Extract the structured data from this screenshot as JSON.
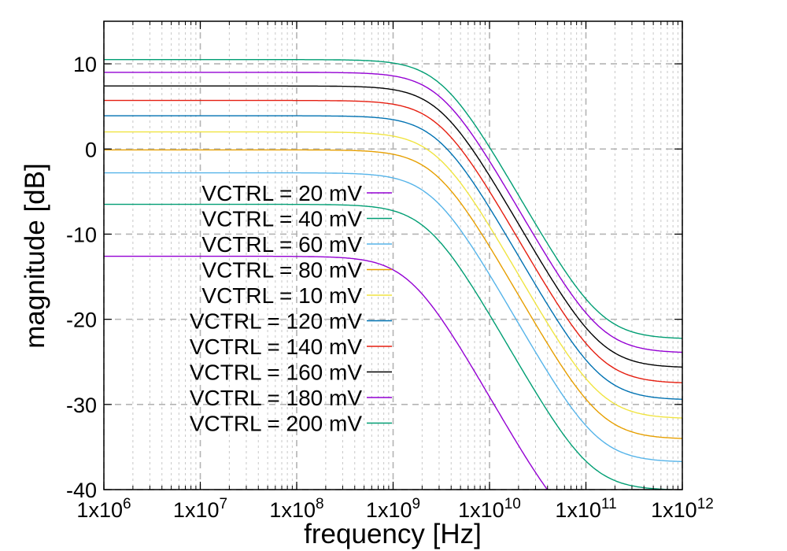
{
  "chart_data": {
    "type": "line",
    "xlabel": "frequency [Hz]",
    "ylabel": "magnitude [dB]",
    "xscale": "log",
    "xlim": [
      1000000,
      1000000000000
    ],
    "ylim": [
      -40,
      15
    ],
    "grid": true,
    "legend_position": "middle-left",
    "x_ticks": [
      {
        "value": 1000000,
        "base": "1x10",
        "exp": "6"
      },
      {
        "value": 10000000,
        "base": "1x10",
        "exp": "7"
      },
      {
        "value": 100000000,
        "base": "1x10",
        "exp": "8"
      },
      {
        "value": 1000000000,
        "base": "1x10",
        "exp": "9"
      },
      {
        "value": 10000000000,
        "base": "1x10",
        "exp": "10"
      },
      {
        "value": 100000000000,
        "base": "1x10",
        "exp": "11"
      },
      {
        "value": 1000000000000,
        "base": "1x10",
        "exp": "12"
      }
    ],
    "y_ticks": [
      {
        "value": 10,
        "label": "10"
      },
      {
        "value": 0,
        "label": "0"
      },
      {
        "value": -10,
        "label": "-10"
      },
      {
        "value": -20,
        "label": "-20"
      },
      {
        "value": -30,
        "label": "-30"
      },
      {
        "value": -40,
        "label": "-40"
      }
    ],
    "series": [
      {
        "name": "VCTRL = 20  mV",
        "color": "#9400d3",
        "dc_gain_db": -12.6,
        "hf_floor_db": -46.0,
        "pole_hz": 1500000000,
        "zero_hz": 75000000000
      },
      {
        "name": "VCTRL = 40  mV",
        "color": "#009e73",
        "dc_gain_db": -6.5,
        "hf_floor_db": -40.5,
        "pole_hz": 2300000000,
        "zero_hz": 110000000000
      },
      {
        "name": "VCTRL = 60  mV",
        "color": "#56b4e9",
        "dc_gain_db": -2.8,
        "hf_floor_db": -36.6,
        "pole_hz": 2600000000,
        "zero_hz": 130000000000
      },
      {
        "name": "VCTRL = 80  mV",
        "color": "#e69f00",
        "dc_gain_db": -0.1,
        "hf_floor_db": -34.0,
        "pole_hz": 2800000000,
        "zero_hz": 140000000000
      },
      {
        "name": "VCTRL = 10  mV",
        "color": "#f0e442",
        "dc_gain_db": 2.0,
        "hf_floor_db": -31.7,
        "pole_hz": 2900000000,
        "zero_hz": 140000000000
      },
      {
        "name": "VCTRL = 120 mV",
        "color": "#0072b2",
        "dc_gain_db": 3.9,
        "hf_floor_db": -29.7,
        "pole_hz": 3000000000,
        "zero_hz": 140000000000
      },
      {
        "name": "VCTRL = 140 mV",
        "color": "#e51e10",
        "dc_gain_db": 5.7,
        "hf_floor_db": -27.6,
        "pole_hz": 3050000000,
        "zero_hz": 140000000000
      },
      {
        "name": "VCTRL = 160 mV",
        "color": "#000000",
        "dc_gain_db": 7.4,
        "hf_floor_db": -25.4,
        "pole_hz": 3100000000,
        "zero_hz": 140000000000
      },
      {
        "name": "VCTRL = 180 mV",
        "color": "#9400d3",
        "dc_gain_db": 9.0,
        "hf_floor_db": -22.6,
        "pole_hz": 3150000000,
        "zero_hz": 140000000000
      },
      {
        "name": "VCTRL = 200 mV",
        "color": "#009e73",
        "dc_gain_db": 10.5,
        "hf_floor_db": -18.9,
        "pole_hz": 3200000000,
        "zero_hz": 140000000000
      }
    ]
  }
}
